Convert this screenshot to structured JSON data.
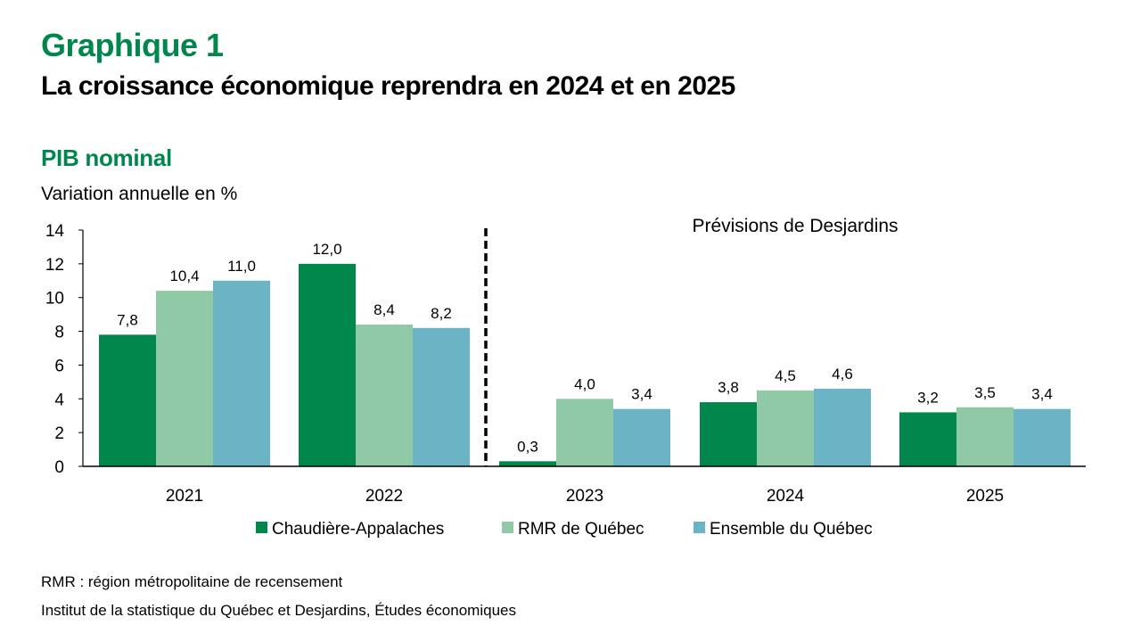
{
  "header": {
    "figure_label": "Graphique 1",
    "title": "La croissance économique reprendra en 2024 et en 2025",
    "subtitle": "PIB nominal",
    "unit": "Variation annuelle en %"
  },
  "chart_data": {
    "type": "bar",
    "title": "PIB nominal",
    "ylabel": "Variation annuelle en %",
    "xlabel": "",
    "categories": [
      "2021",
      "2022",
      "2023",
      "2024",
      "2025"
    ],
    "series": [
      {
        "name": "Chaudière-Appalaches",
        "color": "#00884C",
        "values": [
          7.8,
          12.0,
          0.3,
          3.8,
          3.2
        ],
        "labels": [
          "7,8",
          "12,0",
          "0,3",
          "3,8",
          "3,2"
        ]
      },
      {
        "name": "RMR de Québec",
        "color": "#8FC9A6",
        "values": [
          10.4,
          8.4,
          4.0,
          4.5,
          3.5
        ],
        "labels": [
          "10,4",
          "8,4",
          "4,0",
          "4,5",
          "3,5"
        ]
      },
      {
        "name": "Ensemble du Québec",
        "color": "#6AB4C5",
        "values": [
          11.0,
          8.2,
          3.4,
          4.6,
          3.4
        ],
        "labels": [
          "11,0",
          "8,2",
          "3,4",
          "4,6",
          "3,4"
        ]
      }
    ],
    "ylim": [
      0,
      14
    ],
    "yticks": [
      0,
      2,
      4,
      6,
      8,
      10,
      12,
      14
    ],
    "ytick_labels": [
      "0",
      "2",
      "4",
      "6",
      "8",
      "10",
      "12",
      "14"
    ],
    "grid": false,
    "legend_position": "bottom",
    "annotations": [
      {
        "text": "Prévisions de Desjardins",
        "type": "forecast-label"
      },
      {
        "type": "dashed-divider",
        "between": [
          "2022",
          "2023"
        ]
      }
    ]
  },
  "footer": {
    "note": "RMR : région métropolitaine de recensement",
    "source": "Institut de la statistique du Québec et Desjardins, Études économiques"
  }
}
